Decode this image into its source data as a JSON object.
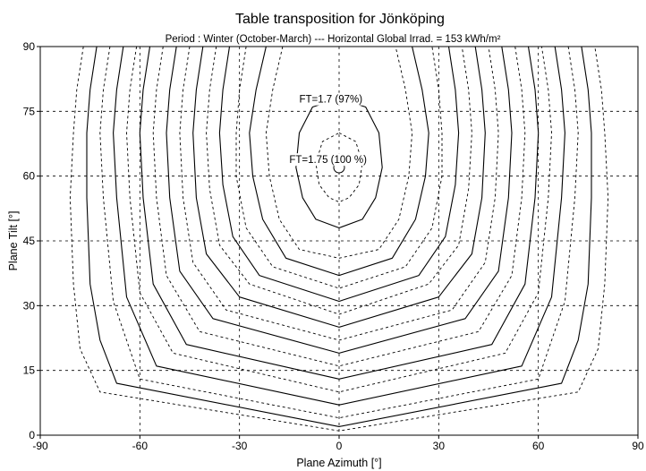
{
  "chart_data": {
    "type": "contour",
    "title": "Table transposition for Jönköping",
    "subtitle": "Period :  Winter (October-March)  ---  Horizontal Global Irrad. =  153 kWh/m²",
    "xlabel": "Plane Azimuth [°]",
    "ylabel": "Plane Tilt [°]",
    "xlim": [
      -90,
      90
    ],
    "ylim": [
      0,
      90
    ],
    "xticks": [
      -90,
      -60,
      -30,
      0,
      30,
      60,
      90
    ],
    "yticks": [
      0,
      15,
      30,
      45,
      60,
      75,
      90
    ],
    "grid": true,
    "annotations": [
      {
        "text": "FT=1.7 (97%)",
        "x": -12,
        "y": 77
      },
      {
        "text": "FT=1.75 (100 %)",
        "x": -15,
        "y": 63
      }
    ],
    "optimum": {
      "x": 0,
      "y": 62
    },
    "contours": [
      {
        "style": "dashed",
        "points": [
          [
            -17,
            90
          ],
          [
            -20,
            80
          ],
          [
            -22,
            70
          ],
          [
            -21,
            60
          ],
          [
            -18,
            50
          ],
          [
            -12,
            43
          ],
          [
            0,
            41
          ],
          [
            12,
            43
          ],
          [
            18,
            50
          ],
          [
            21,
            60
          ],
          [
            22,
            70
          ],
          [
            20,
            80
          ],
          [
            17,
            90
          ]
        ]
      },
      {
        "style": "solid",
        "points": [
          [
            -22,
            90
          ],
          [
            -25,
            80
          ],
          [
            -27,
            70
          ],
          [
            -26,
            60
          ],
          [
            -23,
            50
          ],
          [
            -16,
            41
          ],
          [
            0,
            37
          ],
          [
            16,
            41
          ],
          [
            23,
            50
          ],
          [
            26,
            60
          ],
          [
            27,
            70
          ],
          [
            25,
            80
          ],
          [
            22,
            90
          ]
        ]
      },
      {
        "style": "dashed",
        "points": [
          [
            -28,
            90
          ],
          [
            -30,
            80
          ],
          [
            -31,
            70
          ],
          [
            -31,
            60
          ],
          [
            -28,
            48
          ],
          [
            -20,
            39
          ],
          [
            0,
            34
          ],
          [
            20,
            39
          ],
          [
            28,
            48
          ],
          [
            31,
            60
          ],
          [
            31,
            70
          ],
          [
            30,
            80
          ],
          [
            28,
            90
          ]
        ]
      },
      {
        "style": "solid",
        "points": [
          [
            -33,
            90
          ],
          [
            -35,
            80
          ],
          [
            -36,
            70
          ],
          [
            -35,
            58
          ],
          [
            -32,
            46
          ],
          [
            -24,
            37
          ],
          [
            0,
            31
          ],
          [
            24,
            37
          ],
          [
            32,
            46
          ],
          [
            35,
            58
          ],
          [
            36,
            70
          ],
          [
            35,
            80
          ],
          [
            33,
            90
          ]
        ]
      },
      {
        "style": "dashed",
        "points": [
          [
            -37,
            90
          ],
          [
            -39,
            80
          ],
          [
            -40,
            70
          ],
          [
            -39,
            57
          ],
          [
            -36,
            44
          ],
          [
            -27,
            35
          ],
          [
            0,
            28
          ],
          [
            27,
            35
          ],
          [
            36,
            44
          ],
          [
            39,
            57
          ],
          [
            40,
            70
          ],
          [
            39,
            80
          ],
          [
            37,
            90
          ]
        ]
      },
      {
        "style": "solid",
        "points": [
          [
            -41,
            90
          ],
          [
            -43,
            80
          ],
          [
            -44,
            70
          ],
          [
            -43,
            55
          ],
          [
            -40,
            42
          ],
          [
            -30,
            32
          ],
          [
            0,
            25
          ],
          [
            30,
            32
          ],
          [
            40,
            42
          ],
          [
            43,
            55
          ],
          [
            44,
            70
          ],
          [
            43,
            80
          ],
          [
            41,
            90
          ]
        ]
      },
      {
        "style": "dashed",
        "points": [
          [
            -45,
            90
          ],
          [
            -47,
            80
          ],
          [
            -48,
            70
          ],
          [
            -47,
            55
          ],
          [
            -44,
            40
          ],
          [
            -34,
            29
          ],
          [
            0,
            22
          ],
          [
            34,
            29
          ],
          [
            44,
            40
          ],
          [
            47,
            55
          ],
          [
            48,
            70
          ],
          [
            47,
            80
          ],
          [
            45,
            90
          ]
        ]
      },
      {
        "style": "solid",
        "points": [
          [
            -49,
            90
          ],
          [
            -51,
            80
          ],
          [
            -52,
            70
          ],
          [
            -51,
            55
          ],
          [
            -48,
            38
          ],
          [
            -38,
            27
          ],
          [
            0,
            19
          ],
          [
            38,
            27
          ],
          [
            48,
            38
          ],
          [
            51,
            55
          ],
          [
            52,
            70
          ],
          [
            51,
            80
          ],
          [
            49,
            90
          ]
        ]
      },
      {
        "style": "dashed",
        "points": [
          [
            -53,
            90
          ],
          [
            -55,
            80
          ],
          [
            -56,
            70
          ],
          [
            -55,
            55
          ],
          [
            -52,
            37
          ],
          [
            -42,
            24
          ],
          [
            0,
            16
          ],
          [
            42,
            24
          ],
          [
            52,
            37
          ],
          [
            55,
            55
          ],
          [
            56,
            70
          ],
          [
            55,
            80
          ],
          [
            53,
            90
          ]
        ]
      },
      {
        "style": "solid",
        "points": [
          [
            -57,
            90
          ],
          [
            -59,
            80
          ],
          [
            -60,
            70
          ],
          [
            -59,
            55
          ],
          [
            -56,
            35
          ],
          [
            -46,
            21
          ],
          [
            0,
            13
          ],
          [
            46,
            21
          ],
          [
            56,
            35
          ],
          [
            59,
            55
          ],
          [
            60,
            70
          ],
          [
            59,
            80
          ],
          [
            57,
            90
          ]
        ]
      },
      {
        "style": "dashed",
        "points": [
          [
            -61,
            90
          ],
          [
            -63,
            80
          ],
          [
            -64,
            70
          ],
          [
            -63,
            55
          ],
          [
            -60,
            33
          ],
          [
            -50,
            19
          ],
          [
            0,
            10
          ],
          [
            50,
            19
          ],
          [
            60,
            33
          ],
          [
            63,
            55
          ],
          [
            64,
            70
          ],
          [
            63,
            80
          ],
          [
            61,
            90
          ]
        ]
      },
      {
        "style": "solid",
        "points": [
          [
            -65,
            90
          ],
          [
            -67,
            80
          ],
          [
            -68,
            70
          ],
          [
            -67,
            55
          ],
          [
            -64,
            32
          ],
          [
            -55,
            16
          ],
          [
            0,
            7
          ],
          [
            55,
            16
          ],
          [
            64,
            32
          ],
          [
            67,
            55
          ],
          [
            68,
            70
          ],
          [
            67,
            80
          ],
          [
            65,
            90
          ]
        ]
      },
      {
        "style": "dashed",
        "points": [
          [
            -69,
            90
          ],
          [
            -71,
            80
          ],
          [
            -72,
            70
          ],
          [
            -71,
            55
          ],
          [
            -68,
            31
          ],
          [
            -60,
            13
          ],
          [
            0,
            4
          ],
          [
            60,
            13
          ],
          [
            68,
            31
          ],
          [
            71,
            55
          ],
          [
            72,
            70
          ],
          [
            71,
            80
          ],
          [
            69,
            90
          ]
        ]
      },
      {
        "style": "solid",
        "points": [
          [
            -73,
            90
          ],
          [
            -75,
            80
          ],
          [
            -76,
            70
          ],
          [
            -76,
            55
          ],
          [
            -75,
            35
          ],
          [
            -72,
            22
          ],
          [
            -67,
            12
          ],
          [
            0,
            2
          ],
          [
            67,
            12
          ],
          [
            72,
            22
          ],
          [
            75,
            35
          ],
          [
            76,
            55
          ],
          [
            76,
            70
          ],
          [
            75,
            80
          ],
          [
            73,
            90
          ]
        ]
      },
      {
        "style": "dashed",
        "points": [
          [
            -77,
            90
          ],
          [
            -79,
            80
          ],
          [
            -80,
            70
          ],
          [
            -81,
            55
          ],
          [
            -80,
            35
          ],
          [
            -78,
            20
          ],
          [
            -72,
            10
          ],
          [
            0,
            1
          ],
          [
            72,
            10
          ],
          [
            78,
            20
          ],
          [
            80,
            35
          ],
          [
            81,
            55
          ],
          [
            80,
            70
          ],
          [
            79,
            80
          ],
          [
            77,
            90
          ]
        ]
      }
    ],
    "inner_contours": [
      {
        "style": "solid",
        "label": "FT=1.7 (97%)",
        "points": [
          [
            0,
            78
          ],
          [
            8,
            76
          ],
          [
            12,
            70
          ],
          [
            13,
            62
          ],
          [
            11,
            55
          ],
          [
            7,
            50
          ],
          [
            0,
            48
          ],
          [
            -7,
            50
          ],
          [
            -11,
            55
          ],
          [
            -13,
            62
          ],
          [
            -12,
            70
          ],
          [
            -8,
            76
          ],
          [
            0,
            78
          ]
        ]
      },
      {
        "style": "dashed",
        "label": "FT=1.75 (100 %)",
        "points": [
          [
            0,
            70
          ],
          [
            5,
            68
          ],
          [
            7,
            63
          ],
          [
            6,
            58
          ],
          [
            3,
            55
          ],
          [
            0,
            54
          ],
          [
            -3,
            55
          ],
          [
            -6,
            58
          ],
          [
            -7,
            63
          ],
          [
            -5,
            68
          ],
          [
            0,
            70
          ]
        ]
      }
    ]
  }
}
